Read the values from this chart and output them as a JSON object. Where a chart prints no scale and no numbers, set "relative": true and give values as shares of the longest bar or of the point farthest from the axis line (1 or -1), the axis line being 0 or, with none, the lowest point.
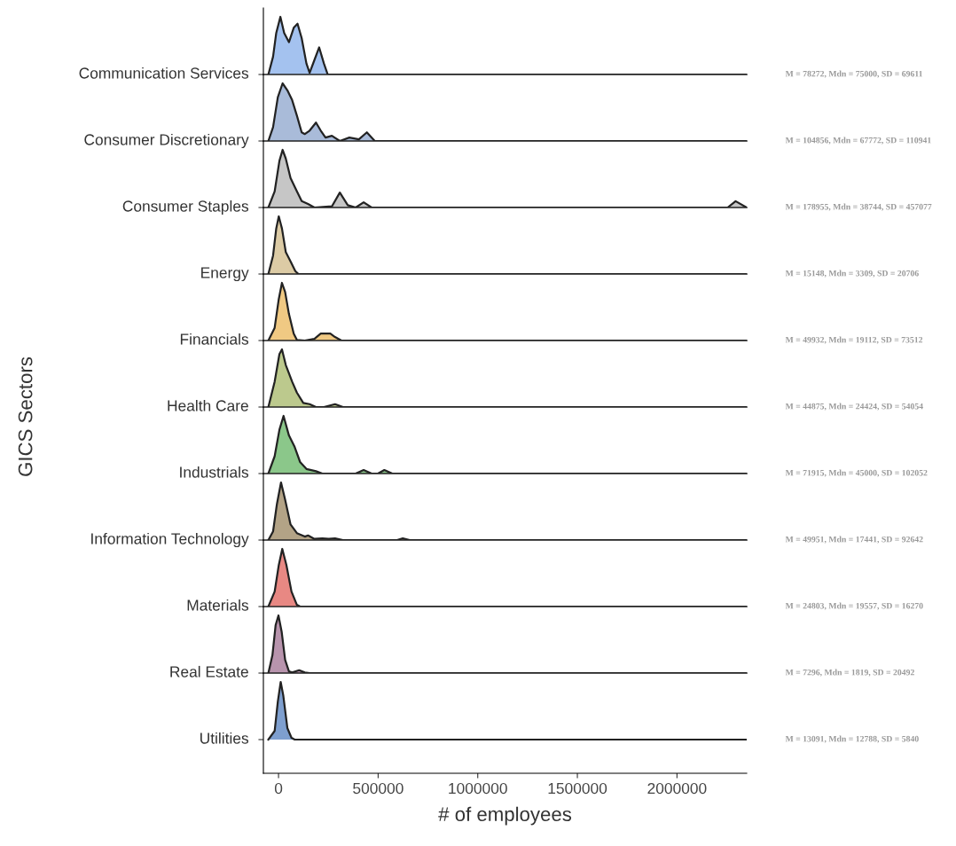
{
  "chart_data": [
    {
      "type": "area",
      "relative": true,
      "title": "Communication Services",
      "xlim": [
        -76000,
        2350000
      ],
      "tick_labels": false,
      "annotations": [
        "M = 78272, Mdn = 75000, SD = 69611"
      ],
      "series": [
        {
          "color": "#a4c2ef",
          "x": [
            -51000,
            -27400,
            -11500,
            9300,
            28400,
            52300,
            76300,
            95400,
            116200,
            140100,
            156100,
            180000,
            204000,
            227900,
            247000,
            2350000
          ],
          "values": [
            0,
            0.31,
            0.72,
            1,
            0.72,
            0.56,
            0.81,
            0.88,
            0.63,
            0.19,
            0.03,
            0.25,
            0.47,
            0.19,
            0,
            0
          ]
        }
      ]
    },
    {
      "type": "area",
      "relative": true,
      "title": "Consumer Discretionary",
      "xlim": [
        -76000,
        2350000
      ],
      "tick_labels": false,
      "annotations": [
        "M = 104856, Mdn = 67772, SD = 110941"
      ],
      "series": [
        {
          "color": "#a9bbd9",
          "x": [
            -51000,
            -27400,
            -3500,
            20400,
            44400,
            68300,
            92200,
            116200,
            132100,
            156100,
            188000,
            211900,
            235900,
            267800,
            307700,
            355500,
            403400,
            443300,
            483200,
            2350000
          ],
          "values": [
            0,
            0.24,
            0.76,
            1,
            0.88,
            0.71,
            0.44,
            0.15,
            0.12,
            0.18,
            0.32,
            0.18,
            0.06,
            0.09,
            0,
            0.06,
            0.03,
            0.15,
            0,
            0
          ]
        }
      ]
    },
    {
      "type": "area",
      "relative": true,
      "title": "Consumer Staples",
      "xlim": [
        -76000,
        2350000
      ],
      "tick_labels": false,
      "annotations": [
        "M = 178955, Mdn = 38744, SD = 457077"
      ],
      "series": [
        {
          "color": "#c6c6c6",
          "x": [
            -51000,
            -19500,
            4500,
            20400,
            36400,
            60300,
            92200,
            116200,
            148100,
            180000,
            267800,
            307700,
            347500,
            387400,
            427300,
            467200,
            2254400,
            2294300,
            2350000
          ],
          "values": [
            0,
            0.28,
            0.81,
            1,
            0.85,
            0.51,
            0.28,
            0.11,
            0.06,
            0,
            0.02,
            0.26,
            0.04,
            0,
            0.09,
            0,
            0,
            0.11,
            0
          ]
        }
      ]
    },
    {
      "type": "area",
      "relative": true,
      "title": "Energy",
      "xlim": [
        -76000,
        2350000
      ],
      "tick_labels": false,
      "annotations": [
        "M = 15148, Mdn = 3309, SD = 20706"
      ],
      "series": [
        {
          "color": "#dccba5",
          "x": [
            -51000,
            -27400,
            -11500,
            1300,
            17200,
            36400,
            60300,
            84300,
            100200,
            2350000
          ],
          "values": [
            0,
            0.32,
            0.79,
            1,
            0.79,
            0.38,
            0.22,
            0.05,
            0,
            0
          ]
        }
      ]
    },
    {
      "type": "area",
      "relative": true,
      "title": "Financials",
      "xlim": [
        -76000,
        2350000
      ],
      "tick_labels": false,
      "annotations": [
        "M = 49932, Mdn = 19112, SD = 73512"
      ],
      "series": [
        {
          "color": "#f0c983",
          "x": [
            -51000,
            -19500,
            1300,
            17200,
            33200,
            52300,
            76300,
            92200,
            132100,
            180000,
            211900,
            235900,
            259800,
            283700,
            315600,
            2350000
          ],
          "values": [
            0,
            0.22,
            0.72,
            1,
            0.84,
            0.46,
            0.12,
            0.01,
            0,
            0.03,
            0.12,
            0.12,
            0.12,
            0.06,
            0,
            0
          ]
        }
      ]
    },
    {
      "type": "area",
      "relative": true,
      "title": "Health Care",
      "ylabel": "GICS Sectors",
      "xlim": [
        -76000,
        2350000
      ],
      "tick_labels": false,
      "annotations": [
        "M = 44875, Mdn = 24424, SD = 54054"
      ],
      "series": [
        {
          "color": "#bcc98d",
          "x": [
            -51000,
            -19500,
            4500,
            17200,
            36400,
            68300,
            92200,
            124200,
            156100,
            188000,
            227900,
            283700,
            323600,
            2350000
          ],
          "values": [
            0,
            0.44,
            0.92,
            1,
            0.73,
            0.44,
            0.25,
            0.07,
            0.05,
            0,
            0,
            0.05,
            0,
            0
          ]
        }
      ]
    },
    {
      "type": "area",
      "relative": true,
      "title": "Industrials",
      "xlim": [
        -76000,
        2350000
      ],
      "tick_labels": false,
      "annotations": [
        "M = 71915, Mdn = 45000, SD = 102052"
      ],
      "series": [
        {
          "color": "#8bc78a",
          "x": [
            -51000,
            -19500,
            4500,
            25200,
            52300,
            81100,
            108200,
            140100,
            188000,
            219900,
            387400,
            427300,
            467200,
            499200,
            531100,
            571000,
            2350000
          ],
          "values": [
            0,
            0.3,
            0.76,
            1,
            0.66,
            0.46,
            0.2,
            0.08,
            0.04,
            0,
            0,
            0.06,
            0,
            0,
            0.06,
            0,
            0
          ]
        }
      ]
    },
    {
      "type": "area",
      "relative": true,
      "title": "Information Technology",
      "xlim": [
        -76000,
        2350000
      ],
      "tick_labels": false,
      "annotations": [
        "M = 49951, Mdn = 17441, SD = 92642"
      ],
      "series": [
        {
          "color": "#b3a386",
          "x": [
            -51000,
            -27400,
            -8300,
            12500,
            33200,
            60300,
            92200,
            132100,
            148100,
            180000,
            219900,
            251800,
            283700,
            323600,
            594900,
            623600,
            658700,
            2350000
          ],
          "values": [
            0,
            0.15,
            0.62,
            1,
            0.7,
            0.27,
            0.12,
            0.06,
            0.08,
            0.02,
            0.03,
            0.02,
            0.03,
            0,
            0,
            0.03,
            0,
            0
          ]
        }
      ]
    },
    {
      "type": "area",
      "relative": true,
      "title": "Materials",
      "xlim": [
        -76000,
        2350000
      ],
      "tick_labels": false,
      "annotations": [
        "M = 24803, Mdn = 19557, SD = 16270"
      ],
      "series": [
        {
          "color": "#e88883",
          "x": [
            -51000,
            -19500,
            1300,
            18800,
            39600,
            65100,
            92200,
            108200,
            2350000
          ],
          "values": [
            0,
            0.26,
            0.72,
            1,
            0.72,
            0.26,
            0.03,
            0,
            0
          ]
        }
      ]
    },
    {
      "type": "area",
      "relative": true,
      "title": "Real Estate",
      "xlim": [
        -76000,
        2350000
      ],
      "tick_labels": false,
      "annotations": [
        "M = 7296, Mdn = 1819, SD = 20492"
      ],
      "series": [
        {
          "color": "#b894ad",
          "x": [
            -51000,
            -30600,
            -14700,
            -300,
            15600,
            33200,
            52300,
            68300,
            103400,
            132100,
            156100,
            2350000
          ],
          "values": [
            0,
            0.31,
            0.83,
            1,
            0.72,
            0.23,
            0.03,
            0.01,
            0.05,
            0.01,
            0,
            0
          ]
        }
      ]
    },
    {
      "type": "area",
      "relative": true,
      "title": "Utilities",
      "xlabel": "# of employees",
      "xlim": [
        -76000,
        2350000
      ],
      "xticks": [
        0,
        500000,
        1000000,
        1500000,
        2000000
      ],
      "tick_labels": "x",
      "annotations": [
        "M = 13091, Mdn = 12788, SD = 5840"
      ],
      "series": [
        {
          "color": "#7e9fcf",
          "x": [
            -51000,
            -19500,
            -3500,
            10900,
            23600,
            44400,
            65100,
            81100,
            2350000
          ],
          "values": [
            0,
            0.15,
            0.66,
            1,
            0.77,
            0.2,
            0.03,
            0,
            0
          ]
        }
      ]
    }
  ]
}
